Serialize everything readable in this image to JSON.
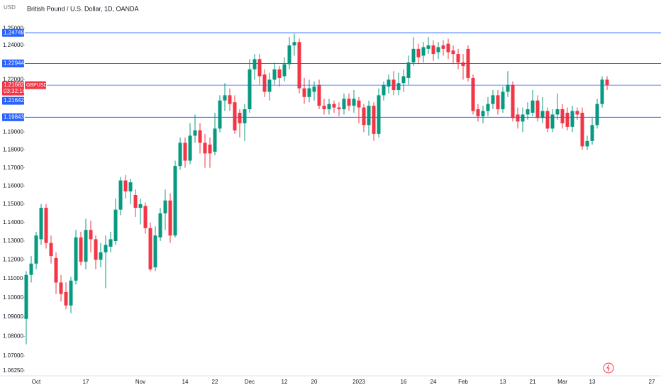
{
  "chart_data": {
    "type": "candlestick",
    "currency": "USD",
    "title": "British Pound / U.S. Dollar, 1D, OANDA",
    "log_scale": true,
    "grid": false,
    "up_color": "#089981",
    "down_color": "#f23645",
    "level_color": "#2962ff",
    "ylim": [
      1.06,
      1.2543
    ],
    "yticks": [
      {
        "value": 1.25,
        "label": "1.25000"
      },
      {
        "value": 1.24,
        "label": "1.24000"
      },
      {
        "value": 1.22,
        "label": "1.22000"
      },
      {
        "value": 1.19,
        "label": "1.19000"
      },
      {
        "value": 1.18,
        "label": "1.18000"
      },
      {
        "value": 1.17,
        "label": "1.17000"
      },
      {
        "value": 1.16,
        "label": "1.16000"
      },
      {
        "value": 1.15,
        "label": "1.15000"
      },
      {
        "value": 1.14,
        "label": "1.14000"
      },
      {
        "value": 1.13,
        "label": "1.13000"
      },
      {
        "value": 1.12,
        "label": "1.12000"
      },
      {
        "value": 1.11,
        "label": "1.11000"
      },
      {
        "value": 1.1,
        "label": "1.10000"
      },
      {
        "value": 1.09,
        "label": "1.09000"
      },
      {
        "value": 1.08,
        "label": "1.08000"
      },
      {
        "value": 1.07,
        "label": "1.07000"
      },
      {
        "value": 1.0625,
        "label": "1.06250"
      }
    ],
    "levels": [
      1.24748,
      1.22944,
      1.19843
    ],
    "last": {
      "value": 1.21682,
      "countdown": "03:32:16",
      "symbol": "GBPUSD"
    },
    "price_labels": [
      1.21642
    ],
    "categories": [
      null,
      null,
      "Oct",
      null,
      null,
      null,
      null,
      null,
      null,
      null,
      null,
      null,
      "17",
      null,
      null,
      null,
      null,
      null,
      null,
      null,
      null,
      null,
      null,
      "Nov",
      null,
      null,
      null,
      null,
      null,
      null,
      null,
      null,
      "14",
      null,
      null,
      null,
      null,
      null,
      "22",
      null,
      null,
      null,
      null,
      null,
      null,
      "Dec",
      null,
      null,
      null,
      null,
      null,
      null,
      "12",
      null,
      null,
      null,
      null,
      null,
      "20",
      null,
      null,
      null,
      null,
      null,
      null,
      null,
      null,
      "2023",
      null,
      null,
      null,
      null,
      null,
      null,
      null,
      null,
      "16",
      null,
      null,
      null,
      null,
      null,
      "24",
      null,
      null,
      null,
      null,
      null,
      "Feb",
      null,
      null,
      null,
      null,
      null,
      null,
      null,
      "13",
      null,
      null,
      null,
      null,
      null,
      "21",
      null,
      null,
      null,
      null,
      null,
      "Mar",
      null,
      null,
      null,
      null,
      null,
      "13",
      null,
      null,
      null,
      null,
      null,
      null,
      null,
      null,
      null,
      null,
      null,
      "27"
    ],
    "open": [
      1.089,
      1.112,
      1.118,
      1.131,
      1.148,
      1.129,
      1.121,
      1.108,
      1.103,
      1.096,
      1.109,
      1.132,
      1.119,
      1.136,
      1.131,
      1.12,
      1.124,
      1.127,
      1.13,
      1.147,
      1.163,
      1.157,
      1.155,
      1.148,
      1.149,
      1.137,
      1.116,
      1.132,
      1.145,
      1.152,
      1.133,
      1.171,
      1.184,
      1.174,
      1.188,
      1.191,
      1.184,
      1.183,
      1.179,
      1.192,
      1.208,
      1.211,
      1.207,
      1.201,
      1.195,
      1.203,
      1.226,
      1.232,
      1.223,
      1.213,
      1.22,
      1.226,
      1.222,
      1.229,
      1.24,
      1.242,
      1.215,
      1.21,
      1.213,
      1.217,
      1.205,
      1.203,
      1.206,
      1.204,
      1.203,
      1.209,
      1.205,
      1.208,
      1.204,
      1.194,
      1.205,
      1.189,
      1.211,
      1.216,
      1.22,
      1.214,
      1.218,
      1.221,
      1.23,
      1.238,
      1.234,
      1.238,
      1.24,
      1.236,
      1.24,
      1.241,
      1.237,
      1.235,
      1.23,
      1.238,
      1.221,
      1.203,
      1.199,
      1.202,
      1.206,
      1.211,
      1.203,
      1.213,
      1.217,
      1.2,
      1.196,
      1.2,
      1.201,
      1.208,
      1.198,
      1.202,
      1.192,
      1.2,
      1.203,
      1.201,
      1.193,
      1.202,
      1.201,
      1.182,
      1.185,
      1.194,
      1.206,
      1.22,
      null,
      null,
      null,
      null,
      null,
      null,
      null,
      null,
      null
    ],
    "high": [
      1.114,
      1.122,
      1.135,
      1.15,
      1.15,
      1.133,
      1.124,
      1.112,
      1.108,
      1.111,
      1.136,
      1.135,
      1.142,
      1.141,
      1.133,
      1.129,
      1.133,
      1.135,
      1.153,
      1.165,
      1.166,
      1.164,
      1.158,
      1.153,
      1.151,
      1.14,
      1.138,
      1.148,
      1.158,
      1.156,
      1.174,
      1.187,
      1.187,
      1.195,
      1.2,
      1.195,
      1.189,
      1.187,
      1.201,
      1.211,
      1.218,
      1.215,
      1.211,
      1.203,
      1.206,
      1.232,
      1.235,
      1.235,
      1.226,
      1.224,
      1.23,
      1.228,
      1.233,
      1.245,
      1.247,
      1.244,
      1.221,
      1.22,
      1.219,
      1.22,
      1.209,
      1.209,
      1.208,
      1.207,
      1.212,
      1.212,
      1.214,
      1.21,
      1.206,
      1.208,
      1.207,
      1.215,
      1.219,
      1.223,
      1.225,
      1.224,
      1.226,
      1.234,
      1.245,
      1.241,
      1.242,
      1.245,
      1.243,
      1.242,
      1.243,
      1.244,
      1.24,
      1.238,
      1.235,
      1.24,
      1.223,
      1.206,
      1.205,
      1.21,
      1.214,
      1.214,
      1.216,
      1.225,
      1.219,
      1.204,
      1.204,
      1.207,
      1.214,
      1.211,
      1.21,
      1.204,
      1.203,
      1.212,
      1.206,
      1.204,
      1.205,
      1.204,
      1.204,
      1.188,
      1.198,
      1.209,
      1.222,
      1.222,
      null,
      null,
      null,
      null,
      null,
      null,
      null,
      null,
      null
    ],
    "low": [
      1.076,
      1.108,
      1.115,
      1.128,
      1.126,
      1.118,
      1.102,
      1.098,
      1.094,
      1.092,
      1.107,
      1.117,
      1.115,
      1.124,
      1.115,
      1.116,
      1.105,
      1.124,
      1.128,
      1.144,
      1.153,
      1.15,
      1.143,
      1.139,
      1.134,
      1.114,
      1.114,
      1.13,
      1.136,
      1.129,
      1.132,
      1.169,
      1.17,
      1.172,
      1.184,
      1.178,
      1.17,
      1.17,
      1.177,
      1.19,
      1.202,
      1.202,
      1.189,
      1.187,
      1.185,
      1.201,
      1.22,
      1.217,
      1.21,
      1.208,
      1.217,
      1.216,
      1.219,
      1.226,
      1.234,
      1.212,
      1.206,
      1.207,
      1.208,
      1.203,
      1.2,
      1.2,
      1.201,
      1.199,
      1.2,
      1.202,
      1.201,
      1.195,
      1.19,
      1.188,
      1.185,
      1.187,
      1.208,
      1.212,
      1.211,
      1.211,
      1.213,
      1.217,
      1.228,
      1.229,
      1.23,
      1.235,
      1.231,
      1.232,
      1.234,
      1.232,
      1.229,
      1.226,
      1.22,
      1.219,
      1.2,
      1.196,
      1.195,
      1.199,
      1.203,
      1.2,
      1.201,
      1.21,
      1.196,
      1.192,
      1.19,
      1.197,
      1.199,
      1.196,
      1.195,
      1.19,
      1.19,
      1.197,
      1.192,
      1.191,
      1.19,
      1.197,
      1.18,
      1.18,
      1.183,
      1.192,
      1.204,
      1.214,
      null,
      null,
      null,
      null,
      null,
      null,
      null,
      null,
      null
    ],
    "close": [
      1.112,
      1.118,
      1.133,
      1.148,
      1.129,
      1.122,
      1.108,
      1.102,
      1.096,
      1.109,
      1.132,
      1.119,
      1.136,
      1.131,
      1.12,
      1.124,
      1.128,
      1.131,
      1.147,
      1.163,
      1.157,
      1.162,
      1.148,
      1.15,
      1.137,
      1.115,
      1.133,
      1.145,
      1.152,
      1.133,
      1.171,
      1.184,
      1.174,
      1.188,
      1.191,
      1.184,
      1.178,
      1.178,
      1.192,
      1.208,
      1.211,
      1.206,
      1.191,
      1.195,
      1.203,
      1.226,
      1.232,
      1.222,
      1.213,
      1.22,
      1.226,
      1.221,
      1.229,
      1.24,
      1.242,
      1.215,
      1.21,
      1.215,
      1.216,
      1.205,
      1.203,
      1.206,
      1.204,
      1.203,
      1.209,
      1.205,
      1.209,
      1.204,
      1.194,
      1.205,
      1.189,
      1.211,
      1.217,
      1.22,
      1.214,
      1.218,
      1.222,
      1.23,
      1.238,
      1.233,
      1.239,
      1.24,
      1.235,
      1.239,
      1.238,
      1.236,
      1.235,
      1.23,
      1.228,
      1.221,
      1.202,
      1.199,
      1.202,
      1.206,
      1.211,
      1.203,
      1.213,
      1.217,
      1.198,
      1.196,
      1.2,
      1.203,
      1.208,
      1.198,
      1.202,
      1.192,
      1.2,
      1.203,
      1.195,
      1.193,
      1.202,
      1.2,
      1.182,
      1.185,
      1.194,
      1.206,
      1.22,
      1.2168,
      null,
      null,
      null,
      null,
      null,
      null,
      null,
      null,
      null
    ]
  }
}
